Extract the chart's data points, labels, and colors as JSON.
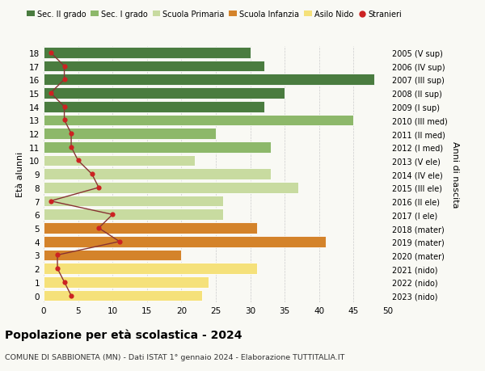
{
  "ages": [
    0,
    1,
    2,
    3,
    4,
    5,
    6,
    7,
    8,
    9,
    10,
    11,
    12,
    13,
    14,
    15,
    16,
    17,
    18
  ],
  "right_labels": [
    "2023 (nido)",
    "2022 (nido)",
    "2021 (nido)",
    "2020 (mater)",
    "2019 (mater)",
    "2018 (mater)",
    "2017 (I ele)",
    "2016 (II ele)",
    "2015 (III ele)",
    "2014 (IV ele)",
    "2013 (V ele)",
    "2012 (I med)",
    "2011 (II med)",
    "2010 (III med)",
    "2009 (I sup)",
    "2008 (II sup)",
    "2007 (III sup)",
    "2006 (IV sup)",
    "2005 (V sup)"
  ],
  "bar_values": [
    23,
    24,
    31,
    20,
    41,
    31,
    26,
    26,
    37,
    33,
    22,
    33,
    25,
    45,
    32,
    35,
    48,
    32,
    30
  ],
  "bar_colors": [
    "#f5e17a",
    "#f5e17a",
    "#f5e17a",
    "#d4832a",
    "#d4832a",
    "#d4832a",
    "#c8dba0",
    "#c8dba0",
    "#c8dba0",
    "#c8dba0",
    "#c8dba0",
    "#8db86a",
    "#8db86a",
    "#8db86a",
    "#4a7c3f",
    "#4a7c3f",
    "#4a7c3f",
    "#4a7c3f",
    "#4a7c3f"
  ],
  "stranieri_values": [
    4,
    3,
    2,
    2,
    11,
    8,
    10,
    1,
    8,
    7,
    5,
    4,
    4,
    3,
    3,
    1,
    3,
    3,
    1
  ],
  "title": "Popolazione per età scolastica - 2024",
  "subtitle": "COMUNE DI SABBIONETA (MN) - Dati ISTAT 1° gennaio 2024 - Elaborazione TUTTITALIA.IT",
  "ylabel": "Età alunni",
  "right_ylabel": "Anni di nascita",
  "xlim": [
    0,
    50
  ],
  "xticks": [
    0,
    5,
    10,
    15,
    20,
    25,
    30,
    35,
    40,
    45,
    50
  ],
  "legend_labels": [
    "Sec. II grado",
    "Sec. I grado",
    "Scuola Primaria",
    "Scuola Infanzia",
    "Asilo Nido",
    "Stranieri"
  ],
  "legend_colors": [
    "#4a7c3f",
    "#8db86a",
    "#c8dba0",
    "#d4832a",
    "#f5e17a",
    "#cc2222"
  ],
  "bg_color": "#f9f9f4",
  "grid_color": "#cccccc",
  "stranieri_color": "#cc2222",
  "stranieri_line_color": "#883333"
}
